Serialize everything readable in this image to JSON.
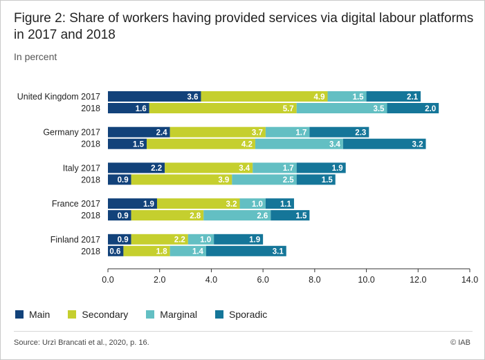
{
  "header": {
    "title": "Figure 2: Share of workers having provided services via digital labour platforms in 2017 and 2018",
    "subtitle": "In percent"
  },
  "footer": {
    "source": "Source: Urzì Brancati et al., 2020, p. 16.",
    "copyright": "© IAB"
  },
  "colors": {
    "Main": "#12427a",
    "Secondary": "#c5cf2e",
    "Marginal": "#63bfc3",
    "Sporadic": "#157699"
  },
  "chart_data": {
    "type": "bar",
    "orientation": "horizontal",
    "stacked": true,
    "title": "Figure 2: Share of workers having provided services via digital labour platforms in 2017 and 2018",
    "subtitle": "In percent",
    "xlabel": "",
    "ylabel": "",
    "xlim": [
      0,
      14
    ],
    "xticks": [
      "0.0",
      "2.0",
      "4.0",
      "6.0",
      "8.0",
      "10.0",
      "12.0",
      "14.0"
    ],
    "grid": false,
    "legend_position": "bottom",
    "categories": [
      "United Kingdom 2017",
      "2018",
      "Germany 2017",
      "2018",
      "Italy 2017",
      "2018",
      "France 2017",
      "2018",
      "Finland 2017",
      "2018"
    ],
    "series": [
      {
        "name": "Main",
        "values": [
          3.6,
          1.6,
          2.4,
          1.5,
          2.2,
          0.9,
          1.9,
          0.9,
          0.9,
          0.6
        ]
      },
      {
        "name": "Secondary",
        "values": [
          4.9,
          5.7,
          3.7,
          4.2,
          3.4,
          3.9,
          3.2,
          2.8,
          2.2,
          1.8
        ]
      },
      {
        "name": "Marginal",
        "values": [
          1.5,
          3.5,
          1.7,
          3.4,
          1.7,
          2.5,
          1.0,
          2.6,
          1.0,
          1.4
        ]
      },
      {
        "name": "Sporadic",
        "values": [
          2.1,
          2.0,
          2.3,
          3.2,
          1.9,
          1.5,
          1.1,
          1.5,
          1.9,
          3.1
        ]
      }
    ]
  }
}
